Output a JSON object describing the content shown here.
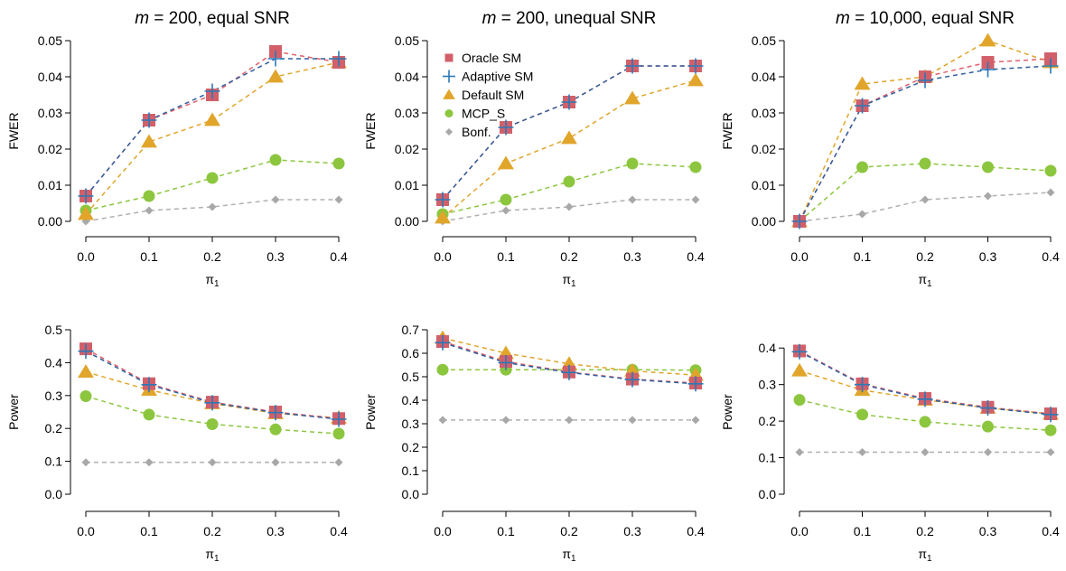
{
  "colors": {
    "oracle": "#d1606a",
    "adaptive": "#2a78b8",
    "default": "#e0a52a",
    "mcp": "#8cc63f",
    "bonf": "#a8a8a8",
    "oracle_line": "#e0606a",
    "adaptive_line": "#2f5f9e",
    "default_line": "#e0a52a",
    "mcp_line": "#8cc63f",
    "bonf_line": "#b0b0b0"
  },
  "legend": {
    "placement": "top-left of middle top panel",
    "items": [
      {
        "name": "Oracle SM",
        "marker": "square",
        "color_key": "oracle"
      },
      {
        "name": "Adaptive SM",
        "marker": "plus",
        "color_key": "adaptive"
      },
      {
        "name": "Default SM",
        "marker": "triangle",
        "color_key": "default"
      },
      {
        "name": "MCP_S",
        "marker": "circle",
        "color_key": "mcp"
      },
      {
        "name": "Bonf.",
        "marker": "diamond",
        "color_key": "bonf"
      }
    ]
  },
  "titles": [
    {
      "m": "m",
      "rest": " = 200, equal SNR"
    },
    {
      "m": "m",
      "rest": " = 200, unequal SNR"
    },
    {
      "m": "m",
      "rest": " = 10,000, equal SNR"
    }
  ],
  "chart_data": [
    {
      "type": "line",
      "row": 0,
      "col": 0,
      "xlabel": "π",
      "xlabel_sub": "1",
      "ylabel": "FWER",
      "x": [
        0.0,
        0.1,
        0.2,
        0.3,
        0.4
      ],
      "xticks": [
        "0.0",
        "0.1",
        "0.2",
        "0.3",
        "0.4"
      ],
      "ylim": [
        0,
        0.05
      ],
      "yticks": [
        0,
        0.01,
        0.02,
        0.03,
        0.04,
        0.05
      ],
      "ytick_labels": [
        "0.00",
        "0.01",
        "0.02",
        "0.03",
        "0.04",
        "0.05"
      ],
      "series": [
        {
          "name": "Oracle SM",
          "values": [
            0.007,
            0.028,
            0.035,
            0.047,
            0.044
          ]
        },
        {
          "name": "Adaptive SM",
          "values": [
            0.007,
            0.028,
            0.036,
            0.045,
            0.045
          ]
        },
        {
          "name": "Default SM",
          "values": [
            0.002,
            0.022,
            0.028,
            0.04,
            0.044
          ]
        },
        {
          "name": "MCP_S",
          "values": [
            0.003,
            0.007,
            0.012,
            0.017,
            0.016
          ]
        },
        {
          "name": "Bonf.",
          "values": [
            0.0,
            0.003,
            0.004,
            0.006,
            0.006
          ]
        }
      ]
    },
    {
      "type": "line",
      "row": 0,
      "col": 1,
      "xlabel": "π",
      "xlabel_sub": "1",
      "ylabel": "FWER",
      "x": [
        0.0,
        0.1,
        0.2,
        0.3,
        0.4
      ],
      "xticks": [
        "0.0",
        "0.1",
        "0.2",
        "0.3",
        "0.4"
      ],
      "ylim": [
        0,
        0.05
      ],
      "yticks": [
        0,
        0.01,
        0.02,
        0.03,
        0.04,
        0.05
      ],
      "ytick_labels": [
        "0.00",
        "0.01",
        "0.02",
        "0.03",
        "0.04",
        "0.05"
      ],
      "series": [
        {
          "name": "Oracle SM",
          "values": [
            0.006,
            0.026,
            0.033,
            0.043,
            0.043
          ]
        },
        {
          "name": "Adaptive SM",
          "values": [
            0.006,
            0.026,
            0.033,
            0.043,
            0.043
          ]
        },
        {
          "name": "Default SM",
          "values": [
            0.001,
            0.016,
            0.023,
            0.034,
            0.039
          ]
        },
        {
          "name": "MCP_S",
          "values": [
            0.002,
            0.006,
            0.011,
            0.016,
            0.015
          ]
        },
        {
          "name": "Bonf.",
          "values": [
            0.0,
            0.003,
            0.004,
            0.006,
            0.006
          ]
        }
      ]
    },
    {
      "type": "line",
      "row": 0,
      "col": 2,
      "xlabel": "π",
      "xlabel_sub": "1",
      "ylabel": "FWER",
      "x": [
        0.0,
        0.1,
        0.2,
        0.3,
        0.4
      ],
      "xticks": [
        "0.0",
        "0.1",
        "0.2",
        "0.3",
        "0.4"
      ],
      "ylim": [
        0,
        0.05
      ],
      "yticks": [
        0,
        0.01,
        0.02,
        0.03,
        0.04,
        0.05
      ],
      "ytick_labels": [
        "0.00",
        "0.01",
        "0.02",
        "0.03",
        "0.04",
        "0.05"
      ],
      "series": [
        {
          "name": "Oracle SM",
          "values": [
            0.0,
            0.032,
            0.04,
            0.044,
            0.045
          ]
        },
        {
          "name": "Adaptive SM",
          "values": [
            0.0,
            0.032,
            0.039,
            0.042,
            0.043
          ]
        },
        {
          "name": "Default SM",
          "values": [
            0.0,
            0.038,
            0.04,
            0.05,
            0.044
          ]
        },
        {
          "name": "MCP_S",
          "values": [
            0.0,
            0.015,
            0.016,
            0.015,
            0.014
          ]
        },
        {
          "name": "Bonf.",
          "values": [
            0.0,
            0.002,
            0.006,
            0.007,
            0.008
          ]
        }
      ]
    },
    {
      "type": "line",
      "row": 1,
      "col": 0,
      "xlabel": "π",
      "xlabel_sub": "1",
      "ylabel": "Power",
      "x": [
        0.0,
        0.1,
        0.2,
        0.3,
        0.4
      ],
      "xticks": [
        "0.0",
        "0.1",
        "0.2",
        "0.3",
        "0.4"
      ],
      "ylim": [
        0,
        0.5
      ],
      "yticks": [
        0,
        0.1,
        0.2,
        0.3,
        0.4,
        0.5
      ],
      "ytick_labels": [
        "0.0",
        "0.1",
        "0.2",
        "0.3",
        "0.4",
        "0.5"
      ],
      "series": [
        {
          "name": "Oracle SM",
          "values": [
            0.442,
            0.336,
            0.28,
            0.25,
            0.23
          ]
        },
        {
          "name": "Adaptive SM",
          "values": [
            0.435,
            0.333,
            0.278,
            0.248,
            0.228
          ]
        },
        {
          "name": "Default SM",
          "values": [
            0.372,
            0.317,
            0.276,
            0.246,
            0.232
          ]
        },
        {
          "name": "MCP_S",
          "values": [
            0.298,
            0.242,
            0.213,
            0.197,
            0.184
          ]
        },
        {
          "name": "Bonf.",
          "values": [
            0.097,
            0.097,
            0.097,
            0.097,
            0.097
          ]
        }
      ]
    },
    {
      "type": "line",
      "row": 1,
      "col": 1,
      "xlabel": "π",
      "xlabel_sub": "1",
      "ylabel": "Power",
      "x": [
        0.0,
        0.1,
        0.2,
        0.3,
        0.4
      ],
      "xticks": [
        "0.0",
        "0.1",
        "0.2",
        "0.3",
        "0.4"
      ],
      "ylim": [
        0,
        0.7
      ],
      "yticks": [
        0,
        0.1,
        0.2,
        0.3,
        0.4,
        0.5,
        0.6,
        0.7
      ],
      "ytick_labels": [
        "0.0",
        "0.1",
        "0.2",
        "0.3",
        "0.4",
        "0.5",
        "0.6",
        "0.7"
      ],
      "series": [
        {
          "name": "Oracle SM",
          "values": [
            0.65,
            0.565,
            0.52,
            0.49,
            0.473
          ]
        },
        {
          "name": "Adaptive SM",
          "values": [
            0.645,
            0.56,
            0.518,
            0.488,
            0.47
          ]
        },
        {
          "name": "Default SM",
          "values": [
            0.665,
            0.6,
            0.555,
            0.525,
            0.507
          ]
        },
        {
          "name": "MCP_S",
          "values": [
            0.53,
            0.53,
            0.53,
            0.53,
            0.528
          ]
        },
        {
          "name": "Bonf.",
          "values": [
            0.316,
            0.316,
            0.316,
            0.316,
            0.316
          ]
        }
      ]
    },
    {
      "type": "line",
      "row": 1,
      "col": 2,
      "xlabel": "π",
      "xlabel_sub": "1",
      "ylabel": "Power",
      "x": [
        0.0,
        0.1,
        0.2,
        0.3,
        0.4
      ],
      "xticks": [
        "0.0",
        "0.1",
        "0.2",
        "0.3",
        "0.4"
      ],
      "ylim": [
        0,
        0.45
      ],
      "yticks": [
        0,
        0.1,
        0.2,
        0.3,
        0.4
      ],
      "ytick_labels": [
        "0.0",
        "0.1",
        "0.2",
        "0.3",
        "0.4"
      ],
      "series": [
        {
          "name": "Oracle SM",
          "values": [
            0.392,
            0.302,
            0.262,
            0.238,
            0.22
          ]
        },
        {
          "name": "Adaptive SM",
          "values": [
            0.39,
            0.3,
            0.26,
            0.236,
            0.218
          ]
        },
        {
          "name": "Default SM",
          "values": [
            0.338,
            0.285,
            0.258,
            0.236,
            0.22
          ]
        },
        {
          "name": "MCP_S",
          "values": [
            0.258,
            0.218,
            0.198,
            0.185,
            0.175
          ]
        },
        {
          "name": "Bonf.",
          "values": [
            0.115,
            0.115,
            0.115,
            0.115,
            0.115
          ]
        }
      ]
    }
  ]
}
